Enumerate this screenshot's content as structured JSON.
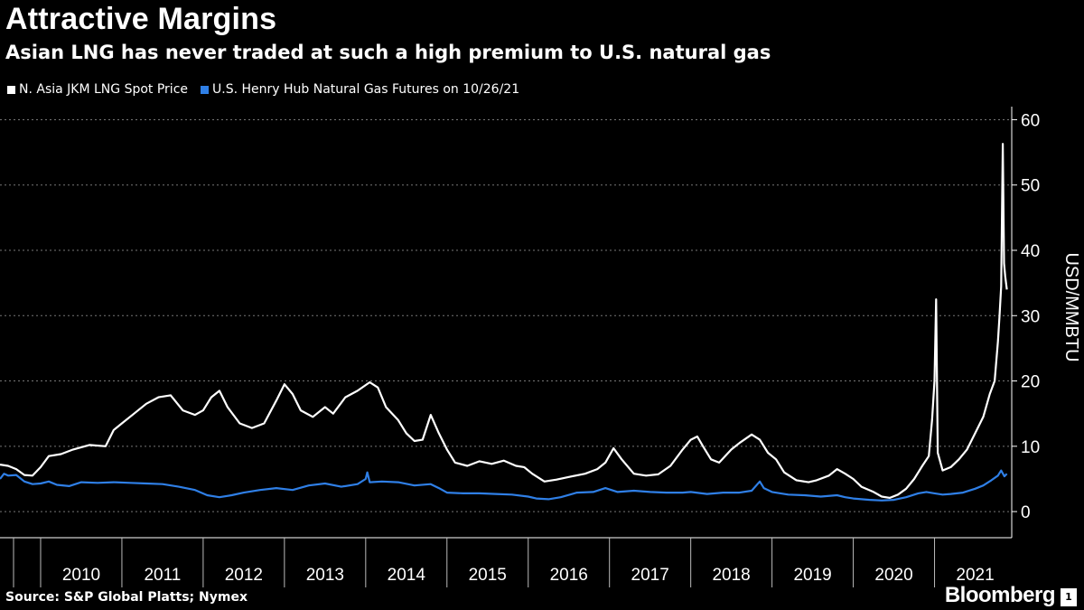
{
  "chart_data": {
    "type": "line",
    "title": "Attractive Margins",
    "subtitle": "Asian LNG has never traded at such a high premium to U.S. natural gas",
    "ylabel": "USD/MMBTU",
    "ylim": [
      -4,
      62
    ],
    "yticks": [
      "0",
      "10",
      "20",
      "30",
      "40",
      "50",
      "60"
    ],
    "ytick_values": [
      0,
      10,
      20,
      30,
      40,
      50,
      60
    ],
    "xlim": [
      2009.5,
      2021.95
    ],
    "xticks": [
      "2010",
      "2011",
      "2012",
      "2013",
      "2014",
      "2015",
      "2016",
      "2017",
      "2018",
      "2019",
      "2020",
      "2021"
    ],
    "grid": true,
    "legend_position": "top-left",
    "series": [
      {
        "name": "N. Asia JKM LNG Spot Price",
        "color": "#ffffff",
        "points": [
          [
            2009.5,
            7.2
          ],
          [
            2009.6,
            7.0
          ],
          [
            2009.7,
            6.5
          ],
          [
            2009.8,
            5.6
          ],
          [
            2009.9,
            5.5
          ],
          [
            2010.0,
            6.8
          ],
          [
            2010.1,
            8.5
          ],
          [
            2010.25,
            8.8
          ],
          [
            2010.4,
            9.5
          ],
          [
            2010.6,
            10.2
          ],
          [
            2010.8,
            10.0
          ],
          [
            2010.9,
            12.5
          ],
          [
            2011.0,
            13.5
          ],
          [
            2011.15,
            15.0
          ],
          [
            2011.3,
            16.5
          ],
          [
            2011.45,
            17.5
          ],
          [
            2011.6,
            17.8
          ],
          [
            2011.75,
            15.5
          ],
          [
            2011.9,
            14.8
          ],
          [
            2012.0,
            15.5
          ],
          [
            2012.1,
            17.5
          ],
          [
            2012.2,
            18.5
          ],
          [
            2012.3,
            16.0
          ],
          [
            2012.45,
            13.5
          ],
          [
            2012.6,
            12.8
          ],
          [
            2012.75,
            13.5
          ],
          [
            2012.9,
            17.0
          ],
          [
            2013.0,
            19.5
          ],
          [
            2013.1,
            18.0
          ],
          [
            2013.2,
            15.5
          ],
          [
            2013.35,
            14.5
          ],
          [
            2013.5,
            16.0
          ],
          [
            2013.6,
            15.0
          ],
          [
            2013.75,
            17.5
          ],
          [
            2013.9,
            18.5
          ],
          [
            2014.05,
            19.8
          ],
          [
            2014.15,
            19.0
          ],
          [
            2014.25,
            16.0
          ],
          [
            2014.4,
            14.0
          ],
          [
            2014.5,
            12.0
          ],
          [
            2014.6,
            10.8
          ],
          [
            2014.7,
            11.0
          ],
          [
            2014.8,
            14.8
          ],
          [
            2014.9,
            12.0
          ],
          [
            2015.0,
            9.5
          ],
          [
            2015.1,
            7.5
          ],
          [
            2015.25,
            7.0
          ],
          [
            2015.4,
            7.7
          ],
          [
            2015.55,
            7.3
          ],
          [
            2015.7,
            7.8
          ],
          [
            2015.85,
            7.0
          ],
          [
            2015.95,
            6.8
          ],
          [
            2016.05,
            5.8
          ],
          [
            2016.2,
            4.6
          ],
          [
            2016.35,
            4.9
          ],
          [
            2016.5,
            5.3
          ],
          [
            2016.7,
            5.8
          ],
          [
            2016.85,
            6.5
          ],
          [
            2016.95,
            7.5
          ],
          [
            2017.05,
            9.7
          ],
          [
            2017.15,
            8.0
          ],
          [
            2017.3,
            5.8
          ],
          [
            2017.45,
            5.5
          ],
          [
            2017.6,
            5.7
          ],
          [
            2017.75,
            7.0
          ],
          [
            2017.9,
            9.5
          ],
          [
            2018.0,
            11.0
          ],
          [
            2018.08,
            11.5
          ],
          [
            2018.15,
            10.0
          ],
          [
            2018.25,
            8.0
          ],
          [
            2018.35,
            7.5
          ],
          [
            2018.5,
            9.5
          ],
          [
            2018.6,
            10.5
          ],
          [
            2018.75,
            11.8
          ],
          [
            2018.85,
            11.0
          ],
          [
            2018.95,
            9.0
          ],
          [
            2019.05,
            8.0
          ],
          [
            2019.15,
            6.0
          ],
          [
            2019.3,
            4.8
          ],
          [
            2019.45,
            4.5
          ],
          [
            2019.55,
            4.8
          ],
          [
            2019.7,
            5.5
          ],
          [
            2019.8,
            6.5
          ],
          [
            2019.9,
            5.8
          ],
          [
            2020.0,
            5.0
          ],
          [
            2020.1,
            3.8
          ],
          [
            2020.25,
            3.0
          ],
          [
            2020.35,
            2.3
          ],
          [
            2020.45,
            2.1
          ],
          [
            2020.55,
            2.6
          ],
          [
            2020.65,
            3.5
          ],
          [
            2020.75,
            5.0
          ],
          [
            2020.85,
            7.0
          ],
          [
            2020.93,
            8.5
          ],
          [
            2020.97,
            14.0
          ],
          [
            2021.0,
            20.0
          ],
          [
            2021.02,
            32.5
          ],
          [
            2021.04,
            9.0
          ],
          [
            2021.1,
            6.3
          ],
          [
            2021.2,
            6.8
          ],
          [
            2021.3,
            8.0
          ],
          [
            2021.4,
            9.5
          ],
          [
            2021.5,
            12.0
          ],
          [
            2021.6,
            14.5
          ],
          [
            2021.68,
            18.0
          ],
          [
            2021.74,
            20.0
          ],
          [
            2021.78,
            26.0
          ],
          [
            2021.8,
            30.0
          ],
          [
            2021.82,
            34.5
          ],
          [
            2021.84,
            56.3
          ],
          [
            2021.855,
            38.0
          ],
          [
            2021.87,
            36.0
          ],
          [
            2021.89,
            34.0
          ]
        ]
      },
      {
        "name": "U.S. Henry Hub Natural Gas Futures on 10/26/21",
        "color": "#2f7fe6",
        "points": [
          [
            2009.5,
            5.0
          ],
          [
            2009.55,
            5.8
          ],
          [
            2009.6,
            5.5
          ],
          [
            2009.7,
            5.6
          ],
          [
            2009.8,
            4.6
          ],
          [
            2009.9,
            4.2
          ],
          [
            2010.0,
            4.3
          ],
          [
            2010.1,
            4.6
          ],
          [
            2010.2,
            4.1
          ],
          [
            2010.35,
            3.9
          ],
          [
            2010.5,
            4.5
          ],
          [
            2010.7,
            4.4
          ],
          [
            2010.9,
            4.5
          ],
          [
            2011.1,
            4.4
          ],
          [
            2011.3,
            4.3
          ],
          [
            2011.5,
            4.2
          ],
          [
            2011.7,
            3.8
          ],
          [
            2011.9,
            3.3
          ],
          [
            2012.05,
            2.5
          ],
          [
            2012.2,
            2.2
          ],
          [
            2012.35,
            2.5
          ],
          [
            2012.5,
            2.9
          ],
          [
            2012.7,
            3.3
          ],
          [
            2012.9,
            3.6
          ],
          [
            2013.1,
            3.3
          ],
          [
            2013.3,
            4.0
          ],
          [
            2013.5,
            4.3
          ],
          [
            2013.7,
            3.8
          ],
          [
            2013.9,
            4.2
          ],
          [
            2014.0,
            5.0
          ],
          [
            2014.02,
            6.0
          ],
          [
            2014.05,
            4.5
          ],
          [
            2014.2,
            4.6
          ],
          [
            2014.4,
            4.5
          ],
          [
            2014.6,
            4.0
          ],
          [
            2014.8,
            4.2
          ],
          [
            2014.9,
            3.6
          ],
          [
            2015.0,
            2.9
          ],
          [
            2015.2,
            2.8
          ],
          [
            2015.4,
            2.8
          ],
          [
            2015.6,
            2.7
          ],
          [
            2015.8,
            2.6
          ],
          [
            2016.0,
            2.3
          ],
          [
            2016.1,
            2.0
          ],
          [
            2016.25,
            1.9
          ],
          [
            2016.4,
            2.2
          ],
          [
            2016.6,
            2.9
          ],
          [
            2016.8,
            3.0
          ],
          [
            2016.95,
            3.6
          ],
          [
            2017.1,
            3.0
          ],
          [
            2017.3,
            3.2
          ],
          [
            2017.5,
            3.0
          ],
          [
            2017.7,
            2.9
          ],
          [
            2017.9,
            2.9
          ],
          [
            2018.0,
            3.0
          ],
          [
            2018.2,
            2.7
          ],
          [
            2018.4,
            2.9
          ],
          [
            2018.6,
            2.9
          ],
          [
            2018.75,
            3.2
          ],
          [
            2018.85,
            4.6
          ],
          [
            2018.9,
            3.6
          ],
          [
            2019.0,
            3.0
          ],
          [
            2019.2,
            2.6
          ],
          [
            2019.4,
            2.5
          ],
          [
            2019.6,
            2.3
          ],
          [
            2019.8,
            2.5
          ],
          [
            2019.9,
            2.2
          ],
          [
            2020.0,
            2.0
          ],
          [
            2020.2,
            1.8
          ],
          [
            2020.35,
            1.7
          ],
          [
            2020.5,
            1.8
          ],
          [
            2020.65,
            2.2
          ],
          [
            2020.8,
            2.8
          ],
          [
            2020.9,
            3.0
          ],
          [
            2021.0,
            2.8
          ],
          [
            2021.1,
            2.6
          ],
          [
            2021.2,
            2.7
          ],
          [
            2021.35,
            2.9
          ],
          [
            2021.5,
            3.5
          ],
          [
            2021.6,
            4.0
          ],
          [
            2021.7,
            4.8
          ],
          [
            2021.78,
            5.5
          ],
          [
            2021.82,
            6.3
          ],
          [
            2021.86,
            5.4
          ],
          [
            2021.89,
            5.8
          ]
        ]
      }
    ]
  },
  "source": "Source: S&P Global Platts; Nymex",
  "brand": "Bloomberg",
  "brand_badge": "1",
  "colors": {
    "background": "#000000",
    "grid": "#777777",
    "text": "#ffffff"
  }
}
